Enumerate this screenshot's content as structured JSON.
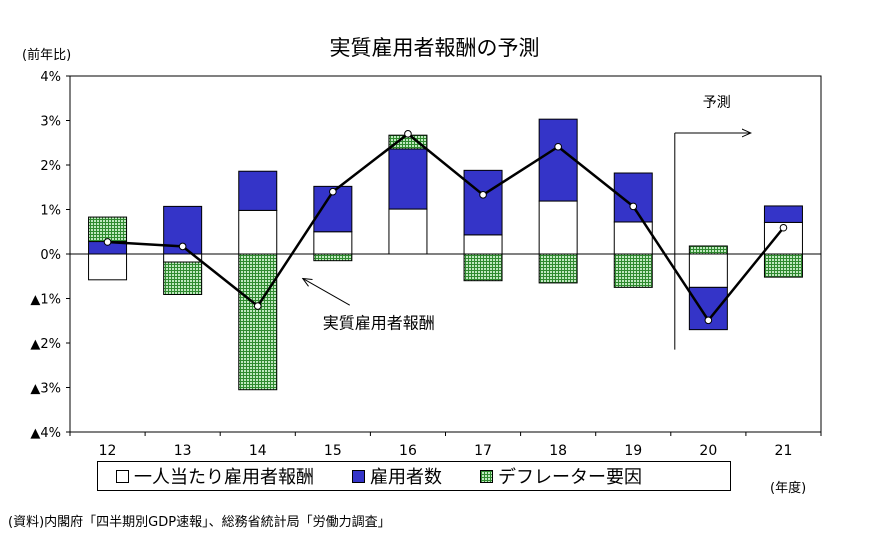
{
  "title": "実質雇用者報酬の予測",
  "y_unit_label": "(前年比)",
  "x_unit_label": "(年度)",
  "source": "(資料)内閣府「四半期別GDP速報」、総務省統計局「労働力調査」",
  "colors": {
    "per_capita": "#ffffff",
    "employees": "#3434c8",
    "deflator_fill": "#bfe8bf",
    "deflator_grid": "#2f8a2f",
    "line": "#000000"
  },
  "legend": {
    "per_capita": "一人当たり雇用者報酬",
    "employees": "雇用者数",
    "deflator": "デフレーター要因"
  },
  "chart_data": {
    "type": "bar",
    "stacked": true,
    "title": "実質雇用者報酬の予測",
    "ylabel": "(前年比)",
    "xlabel": "(年度)",
    "ylim": [
      -4,
      4
    ],
    "y_ticks": [
      "4%",
      "3%",
      "2%",
      "1%",
      "0%",
      "▲1%",
      "▲2%",
      "▲3%",
      "▲4%"
    ],
    "y_tick_values": [
      4,
      3,
      2,
      1,
      0,
      -1,
      -2,
      -3,
      -4
    ],
    "categories": [
      "12",
      "13",
      "14",
      "15",
      "16",
      "17",
      "18",
      "19",
      "20",
      "21"
    ],
    "legend_position": "bottom",
    "grid": false,
    "series": [
      {
        "name": "一人当たり雇用者報酬",
        "type": "bar",
        "values": [
          -0.58,
          -0.18,
          0.98,
          0.5,
          1.01,
          0.43,
          1.19,
          0.72,
          -0.75,
          0.71
        ]
      },
      {
        "name": "雇用者数",
        "type": "bar",
        "values": [
          0.28,
          1.07,
          0.88,
          1.02,
          1.35,
          1.45,
          1.84,
          1.1,
          -0.95,
          0.37
        ]
      },
      {
        "name": "デフレーター要因",
        "type": "bar",
        "values": [
          0.55,
          -0.73,
          -3.05,
          -0.15,
          0.31,
          -0.6,
          -0.65,
          -0.75,
          0.18,
          -0.52
        ]
      },
      {
        "name": "実質雇用者報酬",
        "type": "line",
        "values": [
          0.27,
          0.17,
          -1.17,
          1.4,
          2.7,
          1.33,
          2.41,
          1.07,
          -1.49,
          0.59
        ]
      }
    ],
    "annotations": [
      {
        "text": "実質雇用者報酬",
        "target_series": "実質雇用者報酬",
        "target_category": "14"
      },
      {
        "text": "予測",
        "from_category": "20"
      }
    ]
  }
}
